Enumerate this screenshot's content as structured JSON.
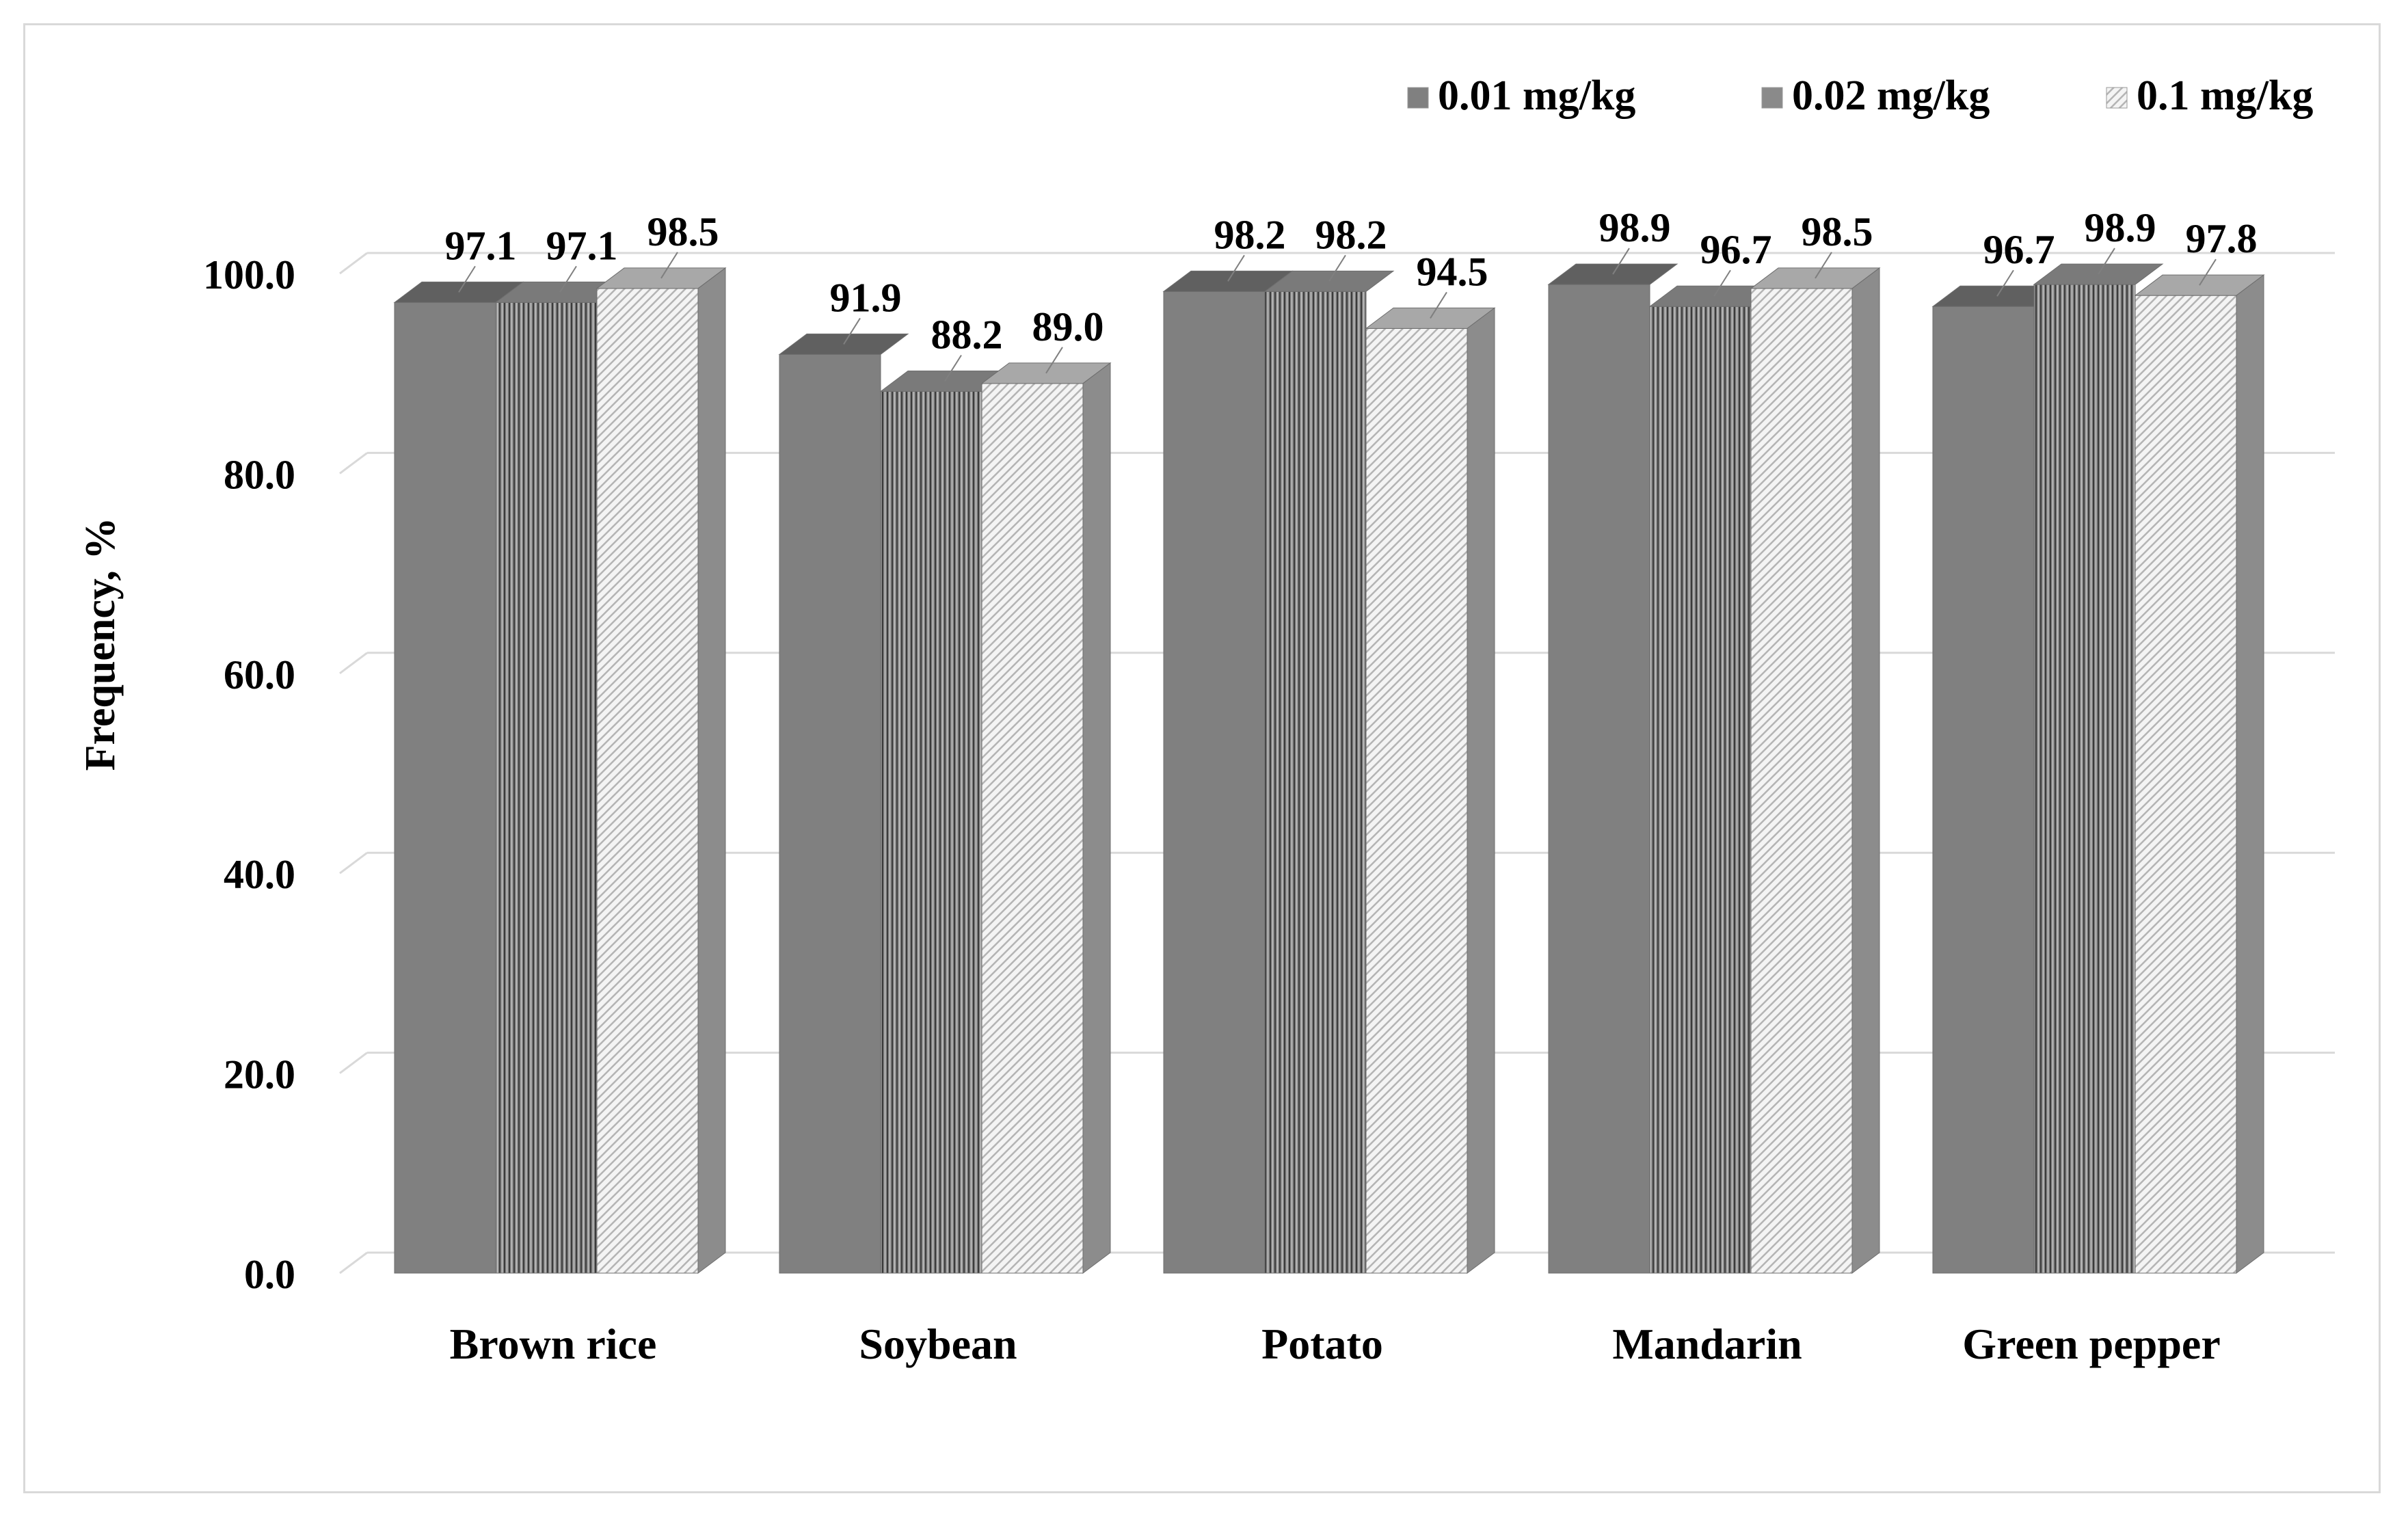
{
  "chart_data": {
    "type": "bar",
    "title": "",
    "xlabel": "",
    "ylabel": "Frequency, %",
    "ylim": [
      0,
      100
    ],
    "yticks": [
      "0.0",
      "20.0",
      "40.0",
      "60.0",
      "80.0",
      "100.0"
    ],
    "grid": true,
    "legend_position": "top-right",
    "categories": [
      "Brown rice",
      "Soybean",
      "Potato",
      "Mandarin",
      "Green pepper"
    ],
    "series": [
      {
        "name": "0.01 mg/kg",
        "values": [
          97.1,
          91.9,
          98.2,
          98.9,
          96.7
        ],
        "labels": [
          "97.1",
          "91.9",
          "98.2",
          "98.9",
          "96.7"
        ]
      },
      {
        "name": "0.02 mg/kg",
        "values": [
          97.1,
          88.2,
          98.2,
          96.7,
          98.9
        ],
        "labels": [
          "97.1",
          "88.2",
          "98.2",
          "96.7",
          "98.9"
        ]
      },
      {
        "name": "0.1 mg/kg",
        "values": [
          98.5,
          89.0,
          94.5,
          98.5,
          97.8
        ],
        "labels": [
          "98.5",
          "89.0",
          "94.5",
          "98.5",
          "97.8"
        ]
      }
    ],
    "colors": {
      "series_0": "#808080",
      "series_1": "#7f7f7f",
      "series_2": "#f2f2f2",
      "grid": "#d9d9d9",
      "side": "#8c8c8c"
    }
  }
}
